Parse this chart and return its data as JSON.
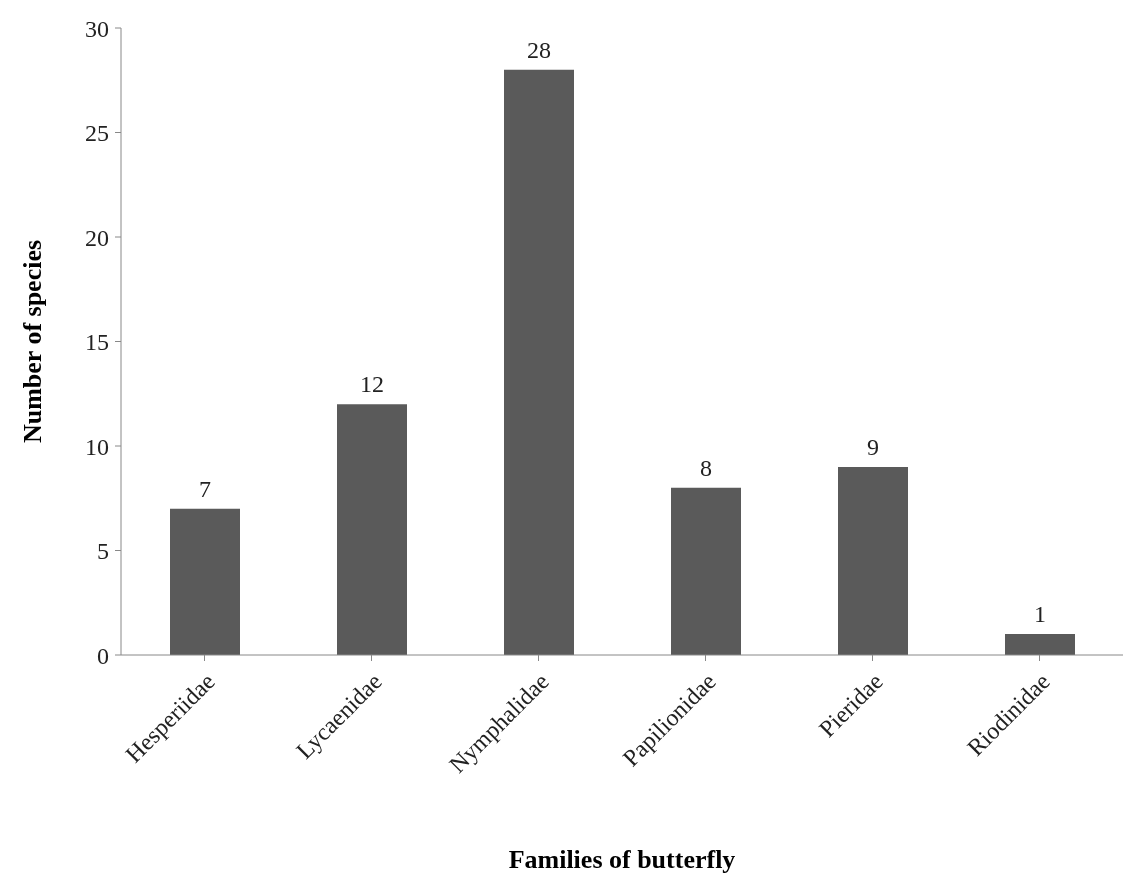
{
  "chart_data": {
    "type": "bar",
    "xlabel": "Families of butterfly",
    "ylabel": "Number of species",
    "categories": [
      "Hesperiidae",
      "Lycaenidae",
      "Nymphalidae",
      "Papilionidae",
      "Pieridae",
      "Riodinidae"
    ],
    "values": [
      7,
      12,
      28,
      8,
      9,
      1
    ],
    "color": "#5a5a5a",
    "ylim": [
      0,
      30
    ],
    "yticks": [
      0,
      5,
      10,
      15,
      20,
      25,
      30
    ],
    "grid": false,
    "data_labels": true
  }
}
